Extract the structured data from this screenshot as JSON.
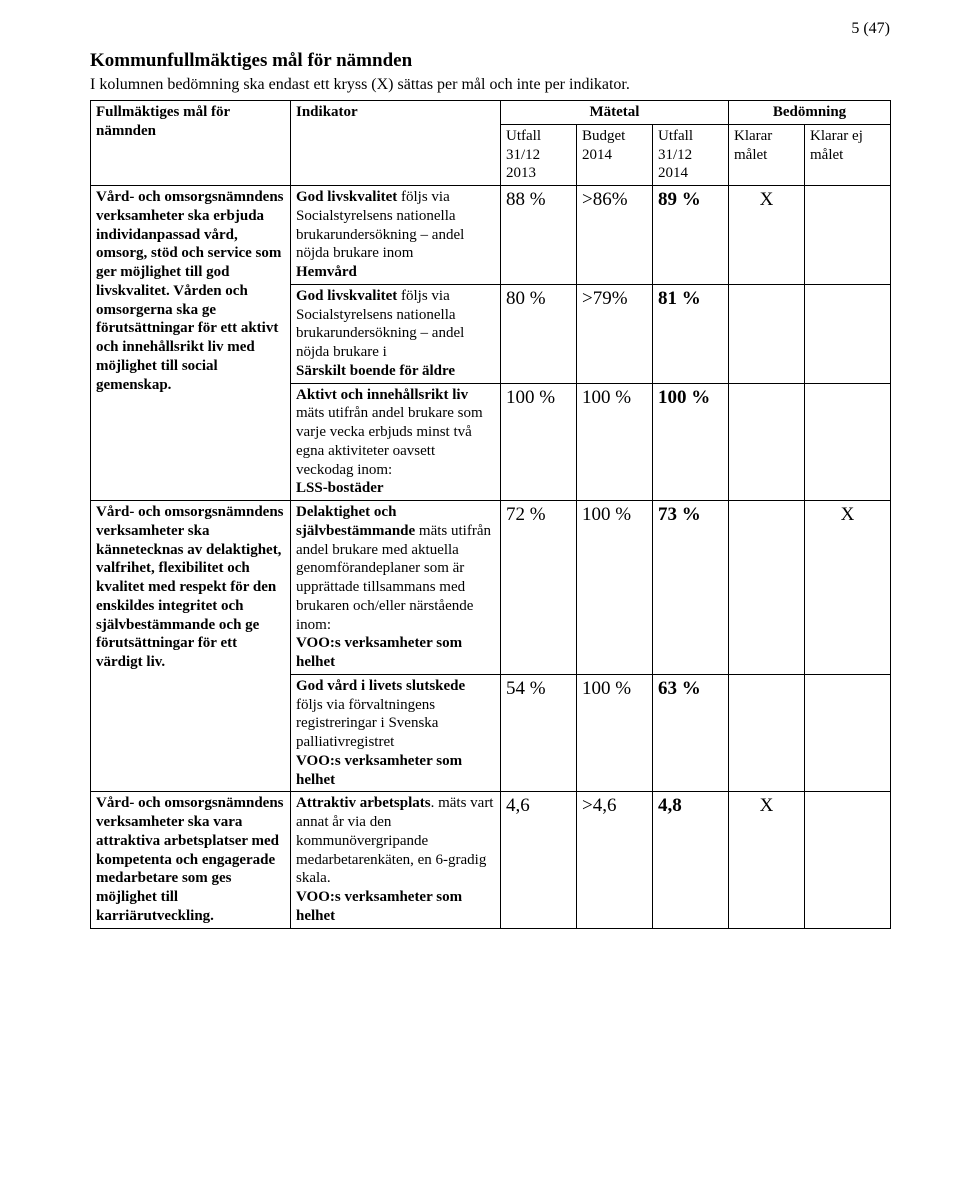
{
  "page_number": "5 (47)",
  "section_title": "Kommunfullmäktiges mål för nämnden",
  "intro_text": "I kolumnen bedömning ska endast ett kryss (X) sättas per mål och inte per indikator.",
  "headers": {
    "goal_header": "Fullmäktiges mål för nämnden",
    "indicator_header": "Indikator",
    "metric_header": "Mätetal",
    "assessment_header": "Bedömning",
    "m1": "Utfall 31/12 2013",
    "m2": "Budget 2014",
    "m3": "Utfall 31/12 2014",
    "b1": "Klarar målet",
    "b2": "Klarar ej målet"
  },
  "goals": {
    "g1": "Vård- och omsorgs­nämndens verksamheter ska erbjuda individ­anpassad vård, omsorg, stöd och service som ger möjlighet till god livskvalitet. Vården och omsorgerna ska ge förutsättningar för ett aktivt och innehållsrikt liv med möjlighet till social gemenskap.",
    "g2": "Vård- och omsorgs­nämndens verksamheter ska kännetecknas av delaktighet, valfrihet, flexibilitet och kvalitet med respekt för den enskildes integritet och självbestämmande och ge förutsättningar för ett värdigt liv.",
    "g3": "Vård- och omsorgs­nämndens verksamheter ska vara attraktiva arbetsplatser med kompetenta och engagerade medarbetare som ges möjlighet till karriärutveckling."
  },
  "rows": [
    {
      "ind_lead": "God livskvalitet",
      "ind_rest": " följs via Socialstyrelsens nationella brukarundersökning – andel nöjda brukare inom ",
      "ind_tail": "Hemvård",
      "m1": "88 %",
      "m2": ">86%",
      "m3": "89 %",
      "b1": "X",
      "b2": ""
    },
    {
      "ind_lead": "God livskvalitet",
      "ind_rest": " följs via Socialstyrelsens nationella brukarundersökning – andel nöjda brukare i ",
      "ind_tail": "Särskilt boende för äldre",
      "m1": "80 %",
      "m2": ">79%",
      "m3": "81 %",
      "b1": "",
      "b2": ""
    },
    {
      "ind_lead": "Aktivt och innehållsrikt liv",
      "ind_rest": " mäts utifrån andel brukare som varje vecka erbjuds minst två egna aktiviteter oavsett veckodag inom:",
      "ind_tail": "LSS-bostäder",
      "m1": "100 %",
      "m2": "100 %",
      "m3": "100 %",
      "b1": "",
      "b2": ""
    },
    {
      "ind_lead": "Delaktighet och självbestämmande",
      "ind_rest": " mäts utifrån andel brukare med aktuella genomförande­planer som är upprättade tillsammans med brukaren och/eller närstående inom:",
      "ind_tail": "VOO:s verksamheter som helhet",
      "m1": "72 %",
      "m2": "100 %",
      "m3": "73 %",
      "b1": "",
      "b2": "X"
    },
    {
      "ind_lead": "God vård i livets slutskede",
      "ind_rest": "\nföljs via förvaltningens registreringar i Svenska palliativregistret",
      "ind_tail": "VOO:s verksamheter som helhet",
      "m1": "54 %",
      "m2": "100 %",
      "m3": "63 %",
      "b1": "",
      "b2": ""
    },
    {
      "ind_lead": "Attraktiv arbetsplats",
      "ind_rest": ". mäts vart annat år via den kommunövergripande medarbetarenkäten, en 6-gradig skala.",
      "ind_tail": "VOO:s verksamheter som helhet",
      "m1": "4,6",
      "m2": ">4,6",
      "m3": "4,8",
      "b1": "X",
      "b2": ""
    }
  ]
}
